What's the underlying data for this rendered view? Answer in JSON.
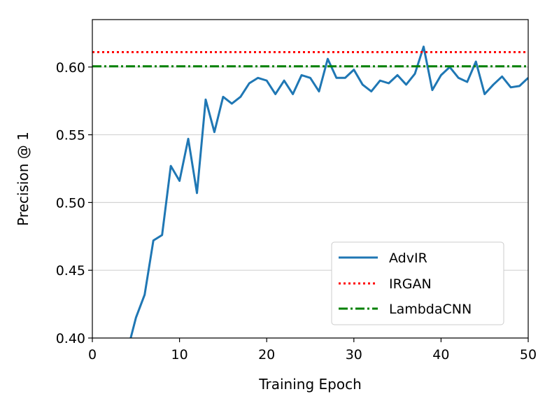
{
  "chart_data": {
    "type": "line",
    "title": "",
    "xlabel": "Training Epoch",
    "ylabel": "Precision @ 1",
    "xlim": [
      0,
      50
    ],
    "ylim": [
      0.4,
      0.635
    ],
    "xticks": [
      0,
      10,
      20,
      30,
      40,
      50
    ],
    "yticks": [
      0.4,
      0.45,
      0.5,
      0.55,
      0.6
    ],
    "xtick_labels": [
      "0",
      "10",
      "20",
      "30",
      "40",
      "50"
    ],
    "ytick_labels": [
      "0.40",
      "0.45",
      "0.50",
      "0.55",
      "0.60"
    ],
    "grid": "horizontal",
    "legend_position": "lower-right",
    "series": [
      {
        "name": "AdvIR",
        "style": "solid",
        "color": "#1f77b4",
        "x": [
          4,
          5,
          6,
          7,
          8,
          9,
          10,
          11,
          12,
          13,
          14,
          15,
          16,
          17,
          18,
          19,
          20,
          21,
          22,
          23,
          24,
          25,
          26,
          27,
          28,
          29,
          30,
          31,
          32,
          33,
          34,
          35,
          36,
          37,
          38,
          39,
          40,
          41,
          42,
          43,
          44,
          45,
          46,
          47,
          48,
          49,
          50
        ],
        "y": [
          0.39,
          0.415,
          0.432,
          0.472,
          0.476,
          0.527,
          0.516,
          0.547,
          0.507,
          0.576,
          0.552,
          0.578,
          0.573,
          0.578,
          0.588,
          0.592,
          0.59,
          0.58,
          0.59,
          0.58,
          0.594,
          0.592,
          0.582,
          0.606,
          0.592,
          0.592,
          0.598,
          0.587,
          0.582,
          0.59,
          0.588,
          0.594,
          0.587,
          0.595,
          0.615,
          0.583,
          0.594,
          0.6,
          0.592,
          0.589,
          0.604,
          0.58,
          0.587,
          0.593,
          0.585,
          0.586,
          0.592
        ]
      },
      {
        "name": "IRGAN",
        "style": "dotted",
        "color": "#ff0000",
        "x": [
          0,
          50
        ],
        "y": [
          0.611,
          0.611
        ]
      },
      {
        "name": "LambdaCNN",
        "style": "dashdot",
        "color": "#008000",
        "x": [
          0,
          50
        ],
        "y": [
          0.6005,
          0.6005
        ]
      }
    ]
  }
}
